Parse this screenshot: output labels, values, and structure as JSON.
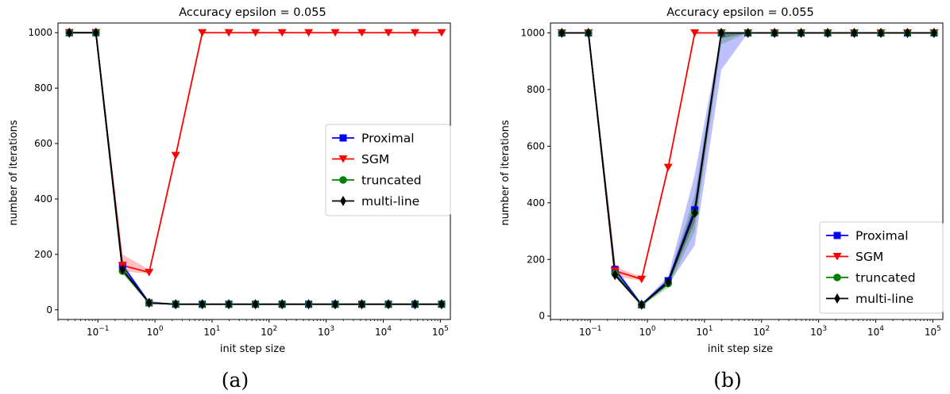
{
  "chart_data": [
    {
      "type": "line",
      "title": "Accuracy epsilon = 0.055",
      "xlabel": "init step size",
      "ylabel": "number of iterations",
      "xscale": "log",
      "caption": "(a)",
      "xlim": [
        0.02,
        150000
      ],
      "ylim": [
        -35,
        1035
      ],
      "yticks": [
        0,
        200,
        400,
        600,
        800,
        1000
      ],
      "xticks": [
        0.1,
        1,
        10,
        100,
        1000,
        10000,
        100000
      ],
      "xtick_labels": [
        "10−1",
        "100",
        "101",
        "102",
        "103",
        "104",
        "105"
      ],
      "legend_position": "center-right",
      "x": [
        0.0316,
        0.0925,
        0.27,
        0.79,
        2.31,
        6.75,
        19.7,
        57.7,
        169,
        493,
        1441,
        4212,
        12313,
        35990,
        105200
      ],
      "series": [
        {
          "name": "Proximal",
          "color": "#0000ff",
          "marker": "square",
          "values": [
            1000,
            1000,
            160,
            25,
            20,
            20,
            20,
            20,
            20,
            20,
            20,
            20,
            20,
            20,
            20
          ],
          "band_low": [
            1000,
            1000,
            150,
            20,
            18,
            18,
            18,
            18,
            18,
            18,
            18,
            18,
            18,
            18,
            18
          ],
          "band_high": [
            1000,
            1000,
            170,
            32,
            22,
            22,
            22,
            22,
            22,
            22,
            22,
            22,
            22,
            22,
            22
          ]
        },
        {
          "name": "SGM",
          "color": "#ff0000",
          "marker": "triangle-down",
          "values": [
            1000,
            1000,
            160,
            135,
            557,
            1000,
            1000,
            1000,
            1000,
            1000,
            1000,
            1000,
            1000,
            1000,
            1000
          ],
          "band_low": [
            1000,
            1000,
            140,
            130,
            550,
            1000,
            1000,
            1000,
            1000,
            1000,
            1000,
            1000,
            1000,
            1000,
            1000
          ],
          "band_high": [
            1000,
            1000,
            200,
            145,
            565,
            1000,
            1000,
            1000,
            1000,
            1000,
            1000,
            1000,
            1000,
            1000,
            1000
          ]
        },
        {
          "name": "truncated",
          "color": "#008000",
          "marker": "circle",
          "values": [
            1000,
            1000,
            140,
            25,
            20,
            20,
            20,
            20,
            20,
            20,
            20,
            20,
            20,
            20,
            20
          ],
          "band_low": [
            1000,
            1000,
            128,
            20,
            18,
            18,
            18,
            18,
            18,
            18,
            18,
            18,
            18,
            18,
            18
          ],
          "band_high": [
            1000,
            1000,
            150,
            30,
            22,
            22,
            22,
            22,
            22,
            22,
            22,
            22,
            22,
            22,
            22
          ]
        },
        {
          "name": "multi-line",
          "color": "#000000",
          "marker": "diamond",
          "values": [
            1000,
            1000,
            145,
            25,
            20,
            20,
            20,
            20,
            20,
            20,
            20,
            20,
            20,
            20,
            20
          ],
          "band_low": [
            1000,
            1000,
            140,
            22,
            19,
            19,
            19,
            19,
            19,
            19,
            19,
            19,
            19,
            19,
            19
          ],
          "band_high": [
            1000,
            1000,
            150,
            28,
            21,
            21,
            21,
            21,
            21,
            21,
            21,
            21,
            21,
            21,
            21
          ]
        }
      ]
    },
    {
      "type": "line",
      "title": "Accuracy epsilon = 0.055",
      "xlabel": "init step size",
      "ylabel": "number of iterations",
      "xscale": "log",
      "caption": "(b)",
      "xlim": [
        0.02,
        150000
      ],
      "ylim": [
        -12,
        1035
      ],
      "yticks": [
        0,
        200,
        400,
        600,
        800,
        1000
      ],
      "xticks": [
        0.1,
        1,
        10,
        100,
        1000,
        10000,
        100000
      ],
      "xtick_labels": [
        "10−1",
        "100",
        "101",
        "102",
        "103",
        "104",
        "105"
      ],
      "legend_position": "lower-right",
      "x": [
        0.0316,
        0.0925,
        0.27,
        0.79,
        2.31,
        6.75,
        19.7,
        57.7,
        169,
        493,
        1441,
        4212,
        12313,
        35990,
        105200
      ],
      "series": [
        {
          "name": "Proximal",
          "color": "#0000ff",
          "marker": "square",
          "values": [
            1000,
            1000,
            165,
            40,
            125,
            375,
            1000,
            1000,
            1000,
            1000,
            1000,
            1000,
            1000,
            1000,
            1000
          ],
          "band_low": [
            1000,
            1000,
            150,
            35,
            110,
            250,
            870,
            1000,
            1000,
            1000,
            1000,
            1000,
            1000,
            1000,
            1000
          ],
          "band_high": [
            1000,
            1000,
            175,
            45,
            140,
            500,
            1000,
            1000,
            1000,
            1000,
            1000,
            1000,
            1000,
            1000,
            1000
          ]
        },
        {
          "name": "SGM",
          "color": "#ff0000",
          "marker": "triangle-down",
          "values": [
            1000,
            1000,
            160,
            130,
            525,
            1000,
            1000,
            1000,
            1000,
            1000,
            1000,
            1000,
            1000,
            1000,
            1000
          ],
          "band_low": [
            1000,
            1000,
            140,
            125,
            515,
            1000,
            1000,
            1000,
            1000,
            1000,
            1000,
            1000,
            1000,
            1000,
            1000
          ],
          "band_high": [
            1000,
            1000,
            175,
            138,
            535,
            1000,
            1000,
            1000,
            1000,
            1000,
            1000,
            1000,
            1000,
            1000,
            1000
          ]
        },
        {
          "name": "truncated",
          "color": "#008000",
          "marker": "circle",
          "values": [
            1000,
            1000,
            150,
            40,
            115,
            365,
            1000,
            1000,
            1000,
            1000,
            1000,
            1000,
            1000,
            1000,
            1000
          ],
          "band_low": [
            1000,
            1000,
            140,
            35,
            100,
            300,
            960,
            1000,
            1000,
            1000,
            1000,
            1000,
            1000,
            1000,
            1000
          ],
          "band_high": [
            1000,
            1000,
            160,
            45,
            130,
            430,
            1000,
            1000,
            1000,
            1000,
            1000,
            1000,
            1000,
            1000,
            1000
          ]
        },
        {
          "name": "multi-line",
          "color": "#000000",
          "marker": "diamond",
          "values": [
            1000,
            1000,
            145,
            40,
            120,
            365,
            1000,
            1000,
            1000,
            1000,
            1000,
            1000,
            1000,
            1000,
            1000
          ],
          "band_low": [
            1000,
            1000,
            140,
            36,
            110,
            330,
            980,
            1000,
            1000,
            1000,
            1000,
            1000,
            1000,
            1000,
            1000
          ],
          "band_high": [
            1000,
            1000,
            150,
            44,
            130,
            400,
            1000,
            1000,
            1000,
            1000,
            1000,
            1000,
            1000,
            1000,
            1000
          ]
        }
      ]
    }
  ]
}
